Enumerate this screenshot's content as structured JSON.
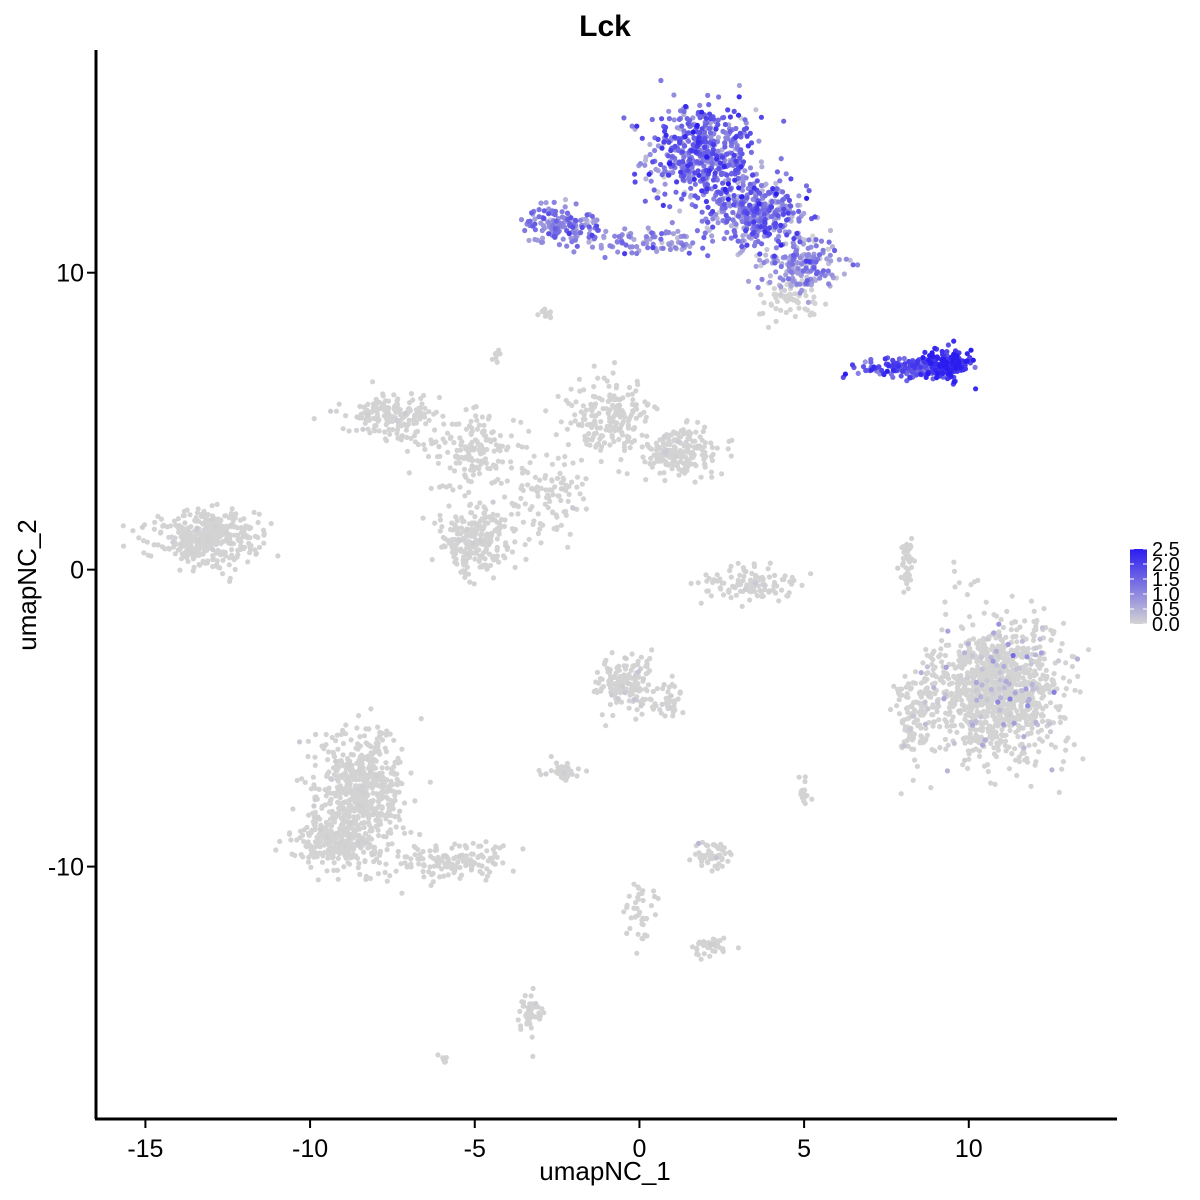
{
  "chart_data": {
    "type": "scatter",
    "title": "Lck",
    "xlabel": "umapNC_1",
    "ylabel": "umapNC_2",
    "xlim": [
      -16.5,
      14.5
    ],
    "ylim": [
      -18.5,
      17.5
    ],
    "xticks": [
      -15,
      -10,
      -5,
      0,
      5,
      10
    ],
    "xtick_labels": [
      "-15",
      "-10",
      "-5",
      "0",
      "5",
      "10"
    ],
    "yticks": [
      -10,
      0,
      10
    ],
    "ytick_labels": [
      "-10",
      "0",
      "10"
    ],
    "grid": false,
    "legend": {
      "placement": "right",
      "type": "colorbar",
      "min": 0.0,
      "max": 2.5,
      "ticks": [
        0.0,
        0.5,
        1.0,
        1.5,
        2.0,
        2.5
      ],
      "tick_labels": [
        "0.0",
        "0.5",
        "1.0",
        "1.5",
        "2.0",
        "2.5"
      ],
      "low_color": "#d3d3d3",
      "high_color": "#2b1cf0"
    },
    "clusters": [
      {
        "cx": 1.9,
        "cy": 14.0,
        "sx": 1.1,
        "sy": 1.1,
        "n": 520,
        "expr_mean": 1.3,
        "expr_sd": 0.5
      },
      {
        "cx": 3.6,
        "cy": 12.0,
        "sx": 1.0,
        "sy": 0.8,
        "n": 380,
        "expr_mean": 1.2,
        "expr_sd": 0.5
      },
      {
        "cx": 4.9,
        "cy": 10.3,
        "sx": 0.8,
        "sy": 0.6,
        "n": 180,
        "expr_mean": 0.8,
        "expr_sd": 0.5
      },
      {
        "cx": -2.3,
        "cy": 11.6,
        "sx": 0.8,
        "sy": 0.4,
        "n": 140,
        "expr_mean": 1.1,
        "expr_sd": 0.4
      },
      {
        "cx": 0.2,
        "cy": 11.1,
        "sx": 1.4,
        "sy": 0.3,
        "n": 90,
        "expr_mean": 0.9,
        "expr_sd": 0.4
      },
      {
        "cx": 4.5,
        "cy": 9.1,
        "sx": 0.6,
        "sy": 0.4,
        "n": 60,
        "expr_mean": 0.2,
        "expr_sd": 0.2
      },
      {
        "cx": 8.2,
        "cy": 6.8,
        "sx": 1.0,
        "sy": 0.25,
        "n": 150,
        "expr_mean": 1.7,
        "expr_sd": 0.4
      },
      {
        "cx": 9.4,
        "cy": 6.9,
        "sx": 0.45,
        "sy": 0.35,
        "n": 140,
        "expr_mean": 2.2,
        "expr_sd": 0.3
      },
      {
        "cx": -13.1,
        "cy": 1.0,
        "sx": 1.0,
        "sy": 0.6,
        "n": 420,
        "expr_mean": 0.0,
        "expr_sd": 0.05
      },
      {
        "cx": -7.5,
        "cy": 5.2,
        "sx": 0.9,
        "sy": 0.5,
        "n": 180,
        "expr_mean": 0.0,
        "expr_sd": 0.05
      },
      {
        "cx": -5.0,
        "cy": 4.0,
        "sx": 1.0,
        "sy": 0.8,
        "n": 160,
        "expr_mean": 0.0,
        "expr_sd": 0.05
      },
      {
        "cx": -1.0,
        "cy": 5.2,
        "sx": 0.8,
        "sy": 0.8,
        "n": 190,
        "expr_mean": 0.0,
        "expr_sd": 0.05
      },
      {
        "cx": 1.3,
        "cy": 4.0,
        "sx": 0.8,
        "sy": 0.5,
        "n": 200,
        "expr_mean": 0.0,
        "expr_sd": 0.05
      },
      {
        "cx": -4.9,
        "cy": 1.0,
        "sx": 0.8,
        "sy": 0.7,
        "n": 260,
        "expr_mean": 0.0,
        "expr_sd": 0.05
      },
      {
        "cx": -2.8,
        "cy": 2.5,
        "sx": 0.8,
        "sy": 0.8,
        "n": 100,
        "expr_mean": 0.0,
        "expr_sd": 0.05
      },
      {
        "cx": 3.3,
        "cy": -0.5,
        "sx": 0.9,
        "sy": 0.4,
        "n": 110,
        "expr_mean": 0.0,
        "expr_sd": 0.05
      },
      {
        "cx": 8.1,
        "cy": 0.1,
        "sx": 0.15,
        "sy": 0.7,
        "n": 40,
        "expr_mean": 0.0,
        "expr_sd": 0.05
      },
      {
        "cx": 10.9,
        "cy": -4.0,
        "sx": 1.3,
        "sy": 1.5,
        "n": 1100,
        "expr_mean": 0.2,
        "expr_sd": 0.35
      },
      {
        "cx": 8.4,
        "cy": -5.0,
        "sx": 0.5,
        "sy": 1.1,
        "n": 120,
        "expr_mean": 0.05,
        "expr_sd": 0.15
      },
      {
        "cx": -0.4,
        "cy": -3.8,
        "sx": 0.6,
        "sy": 0.6,
        "n": 160,
        "expr_mean": 0.0,
        "expr_sd": 0.1
      },
      {
        "cx": 0.9,
        "cy": -4.4,
        "sx": 0.4,
        "sy": 0.4,
        "n": 40,
        "expr_mean": 0.0,
        "expr_sd": 0.1
      },
      {
        "cx": -8.5,
        "cy": -7.6,
        "sx": 0.9,
        "sy": 1.4,
        "n": 650,
        "expr_mean": 0.0,
        "expr_sd": 0.05
      },
      {
        "cx": -9.4,
        "cy": -9.2,
        "sx": 0.7,
        "sy": 0.5,
        "n": 200,
        "expr_mean": 0.0,
        "expr_sd": 0.05
      },
      {
        "cx": -5.8,
        "cy": -9.8,
        "sx": 1.2,
        "sy": 0.4,
        "n": 150,
        "expr_mean": 0.0,
        "expr_sd": 0.05
      },
      {
        "cx": -2.3,
        "cy": -6.8,
        "sx": 0.4,
        "sy": 0.2,
        "n": 45,
        "expr_mean": 0.0,
        "expr_sd": 0.1
      },
      {
        "cx": 2.2,
        "cy": -9.6,
        "sx": 0.4,
        "sy": 0.3,
        "n": 50,
        "expr_mean": 0.0,
        "expr_sd": 0.15
      },
      {
        "cx": 2.2,
        "cy": -12.7,
        "sx": 0.4,
        "sy": 0.15,
        "n": 40,
        "expr_mean": 0.0,
        "expr_sd": 0.05
      },
      {
        "cx": -3.3,
        "cy": -14.9,
        "sx": 0.2,
        "sy": 0.5,
        "n": 50,
        "expr_mean": 0.0,
        "expr_sd": 0.1
      },
      {
        "cx": -2.8,
        "cy": 8.6,
        "sx": 0.2,
        "sy": 0.1,
        "n": 12,
        "expr_mean": 0.0,
        "expr_sd": 0.05
      },
      {
        "cx": -4.3,
        "cy": 7.2,
        "sx": 0.15,
        "sy": 0.15,
        "n": 8,
        "expr_mean": 0.0,
        "expr_sd": 0.05
      },
      {
        "cx": 0.0,
        "cy": -11.5,
        "sx": 0.3,
        "sy": 0.8,
        "n": 40,
        "expr_mean": 0.0,
        "expr_sd": 0.05
      },
      {
        "cx": 5.0,
        "cy": -7.5,
        "sx": 0.15,
        "sy": 0.3,
        "n": 15,
        "expr_mean": 0.0,
        "expr_sd": 0.05
      },
      {
        "cx": -6.0,
        "cy": -16.5,
        "sx": 0.1,
        "sy": 0.1,
        "n": 6,
        "expr_mean": 0.0,
        "expr_sd": 0.05
      }
    ]
  }
}
